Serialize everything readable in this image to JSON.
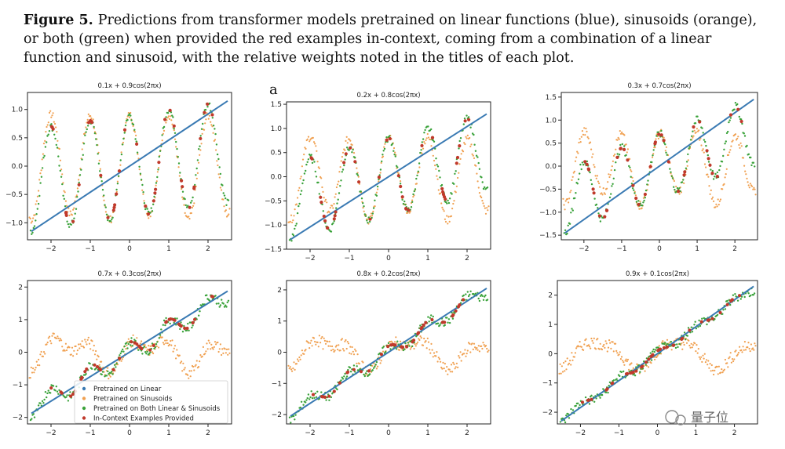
{
  "caption": {
    "label": "Figure 5.",
    "text": "Predictions from transformer models pretrained on linear functions (blue), sinusoids (orange), or both (green) when provided the red examples in-context, coming from a combination of a linear function and sinusoid, with the relative weights noted in the titles of each plot."
  },
  "stray_label": "a",
  "watermark": "量子位",
  "colors": {
    "linear": "#3a7ab3",
    "sinusoids": "#f0a050",
    "both": "#3aa23a",
    "examples": "#c0392b"
  },
  "legend": {
    "items": [
      {
        "label": "Pretrained on Linear",
        "color_key": "linear"
      },
      {
        "label": "Pretrained on Sinusoids",
        "color_key": "sinusoids"
      },
      {
        "label": "Pretrained on Both Linear & Sinusoids",
        "color_key": "both"
      },
      {
        "label": "In-Context Examples Provided",
        "color_key": "examples"
      }
    ]
  },
  "chart_data": [
    {
      "type": "scatter",
      "title": "0.1x + 0.9cos(2πx)",
      "weights": {
        "linear": 0.1,
        "cos": 0.9
      },
      "xlim": [
        -2.6,
        2.6
      ],
      "ylim": [
        -1.3,
        1.3
      ],
      "xticks": [
        -2,
        -1,
        0,
        1,
        2
      ],
      "yticks": [
        -1.0,
        -0.5,
        0.0,
        0.5,
        1.0
      ],
      "ytick_labels": [
        "−1.0",
        "−0.5",
        "0.0",
        "0.5",
        "1.0"
      ],
      "series": [
        {
          "name": "Pretrained on Linear",
          "kind": "line"
        },
        {
          "name": "Pretrained on Sinusoids",
          "kind": "dots"
        },
        {
          "name": "Pretrained on Both Linear & Sinusoids",
          "kind": "dots"
        },
        {
          "name": "In-Context Examples Provided",
          "kind": "points"
        }
      ]
    },
    {
      "type": "scatter",
      "title": "0.2x + 0.8cos(2πx)",
      "weights": {
        "linear": 0.2,
        "cos": 0.8
      },
      "xlim": [
        -2.6,
        2.6
      ],
      "ylim": [
        -1.5,
        1.55
      ],
      "xticks": [
        -2,
        -1,
        0,
        1,
        2
      ],
      "yticks": [
        -1.5,
        -1.0,
        -0.5,
        0.0,
        0.5,
        1.0,
        1.5
      ],
      "ytick_labels": [
        "−1.5",
        "−1.0",
        "−0.5",
        "0.0",
        "0.5",
        "1.0",
        "1.5"
      ],
      "series": [
        {
          "name": "Pretrained on Linear",
          "kind": "line"
        },
        {
          "name": "Pretrained on Sinusoids",
          "kind": "dots"
        },
        {
          "name": "Pretrained on Both Linear & Sinusoids",
          "kind": "dots"
        },
        {
          "name": "In-Context Examples Provided",
          "kind": "points"
        }
      ]
    },
    {
      "type": "scatter",
      "title": "0.3x + 0.7cos(2πx)",
      "weights": {
        "linear": 0.3,
        "cos": 0.7
      },
      "xlim": [
        -2.6,
        2.6
      ],
      "ylim": [
        -1.6,
        1.6
      ],
      "xticks": [
        -2,
        -1,
        0,
        1,
        2
      ],
      "yticks": [
        -1.5,
        -1.0,
        -0.5,
        0.0,
        0.5,
        1.0,
        1.5
      ],
      "ytick_labels": [
        "−1.5",
        "−1.0",
        "−0.5",
        "0.0",
        "0.5",
        "1.0",
        "1.5"
      ],
      "series": [
        {
          "name": "Pretrained on Linear",
          "kind": "line"
        },
        {
          "name": "Pretrained on Sinusoids",
          "kind": "dots"
        },
        {
          "name": "Pretrained on Both Linear & Sinusoids",
          "kind": "dots"
        },
        {
          "name": "In-Context Examples Provided",
          "kind": "points"
        }
      ]
    },
    {
      "type": "scatter",
      "title": "0.7x + 0.3cos(2πx)",
      "weights": {
        "linear": 0.7,
        "cos": 0.3
      },
      "xlim": [
        -2.6,
        2.6
      ],
      "ylim": [
        -2.2,
        2.2
      ],
      "xticks": [
        -2,
        -1,
        0,
        1,
        2
      ],
      "yticks": [
        -2,
        -1,
        0,
        1,
        2
      ],
      "ytick_labels": [
        "−2",
        "−1",
        "0",
        "1",
        "2"
      ],
      "legend": true,
      "series": [
        {
          "name": "Pretrained on Linear",
          "kind": "line"
        },
        {
          "name": "Pretrained on Sinusoids",
          "kind": "dots"
        },
        {
          "name": "Pretrained on Both Linear & Sinusoids",
          "kind": "dots"
        },
        {
          "name": "In-Context Examples Provided",
          "kind": "points"
        }
      ]
    },
    {
      "type": "scatter",
      "title": "0.8x + 0.2cos(2πx)",
      "weights": {
        "linear": 0.8,
        "cos": 0.2
      },
      "xlim": [
        -2.6,
        2.6
      ],
      "ylim": [
        -2.3,
        2.3
      ],
      "xticks": [
        -2,
        -1,
        0,
        1,
        2
      ],
      "yticks": [
        -2,
        -1,
        0,
        1,
        2
      ],
      "ytick_labels": [
        "−2",
        "−1",
        "0",
        "1",
        "2"
      ],
      "series": [
        {
          "name": "Pretrained on Linear",
          "kind": "line"
        },
        {
          "name": "Pretrained on Sinusoids",
          "kind": "dots"
        },
        {
          "name": "Pretrained on Both Linear & Sinusoids",
          "kind": "dots"
        },
        {
          "name": "In-Context Examples Provided",
          "kind": "points"
        }
      ]
    },
    {
      "type": "scatter",
      "title": "0.9x + 0.1cos(2πx)",
      "weights": {
        "linear": 0.9,
        "cos": 0.1
      },
      "xlim": [
        -2.6,
        2.6
      ],
      "ylim": [
        -2.4,
        2.5
      ],
      "xticks": [
        -2,
        -1,
        0,
        1,
        2
      ],
      "yticks": [
        -2,
        -1,
        0,
        1,
        2
      ],
      "ytick_labels": [
        "−2",
        "−1",
        "0",
        "1",
        "2"
      ],
      "series": [
        {
          "name": "Pretrained on Linear",
          "kind": "line"
        },
        {
          "name": "Pretrained on Sinusoids",
          "kind": "dots"
        },
        {
          "name": "Pretrained on Both Linear & Sinusoids",
          "kind": "dots"
        },
        {
          "name": "In-Context Examples Provided",
          "kind": "points"
        }
      ]
    }
  ]
}
